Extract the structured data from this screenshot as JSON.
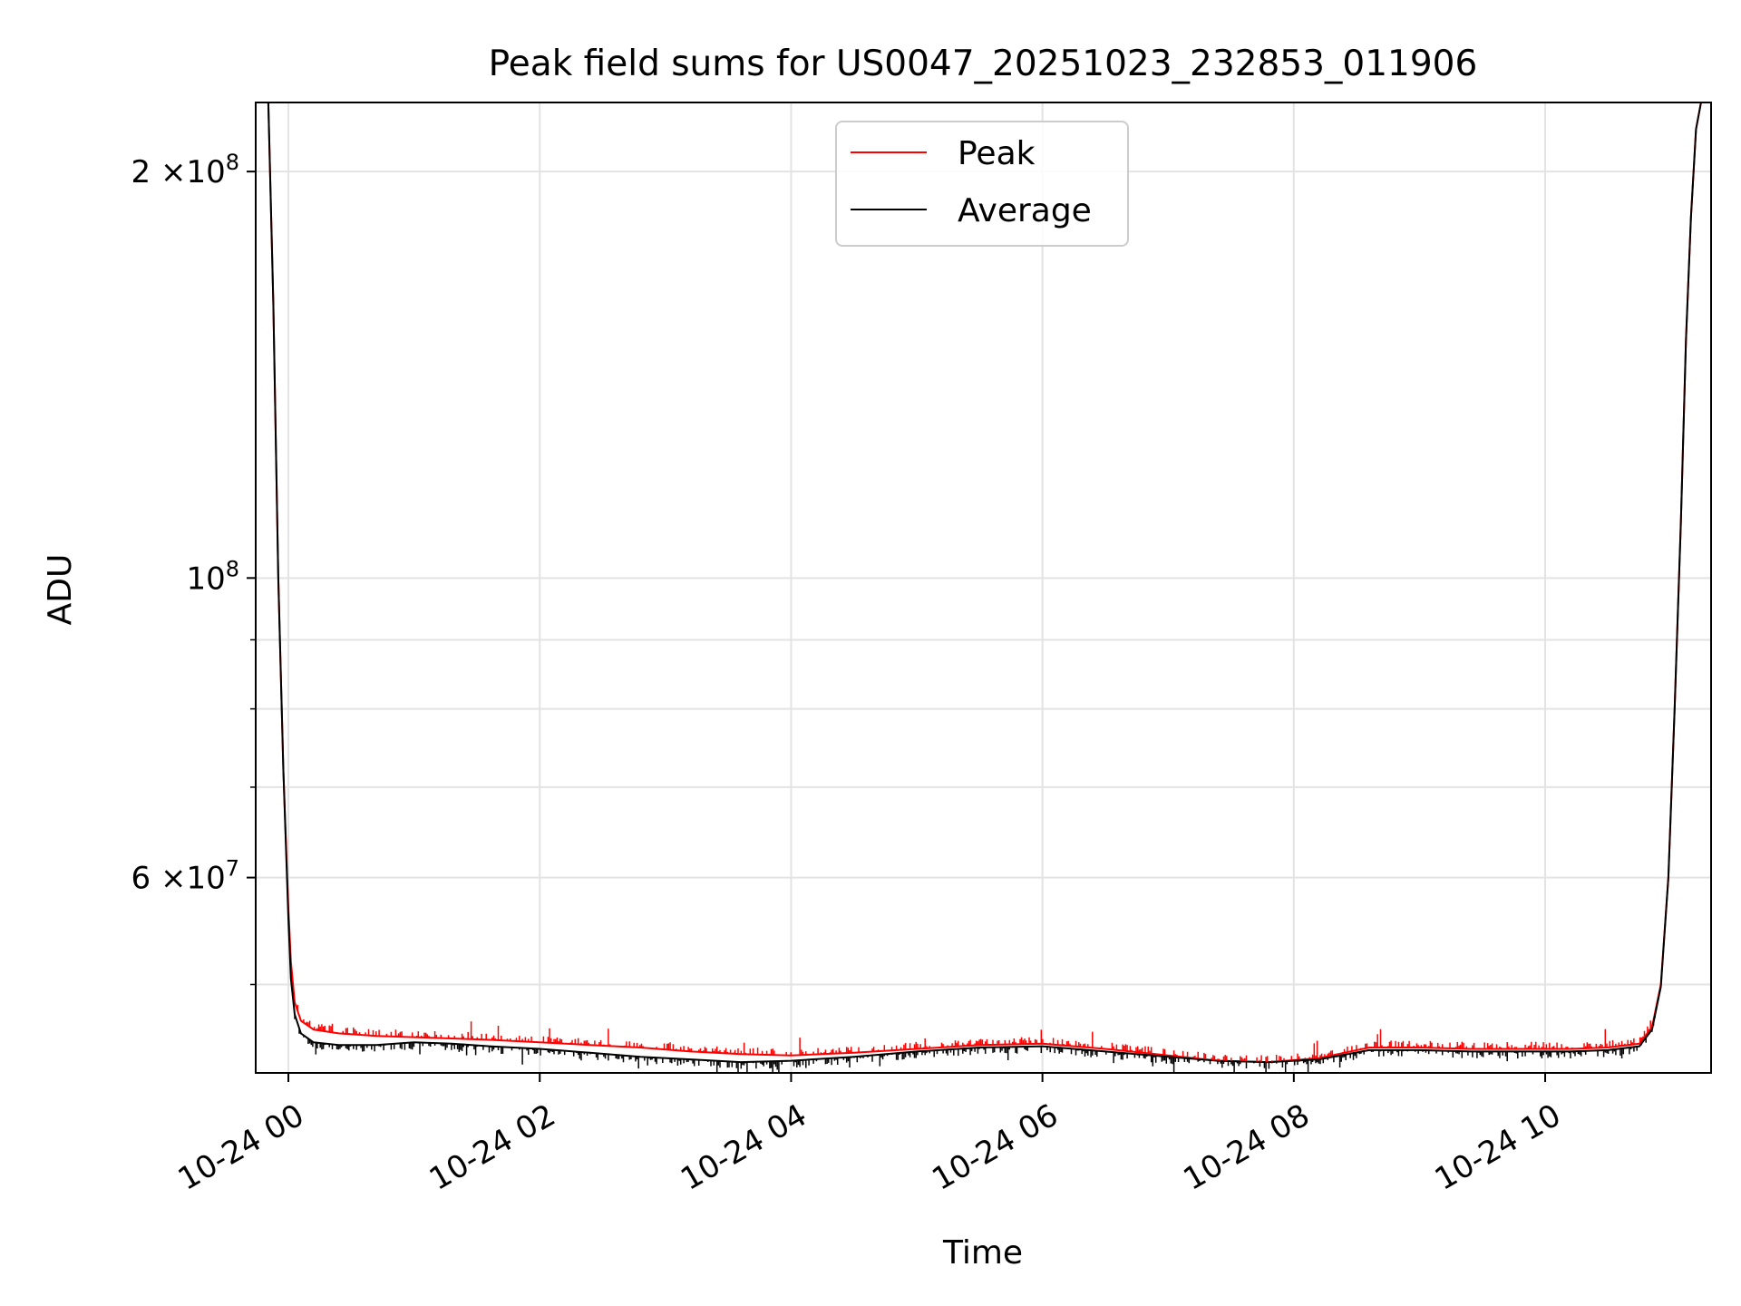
{
  "chart_data": {
    "type": "line",
    "title": "Peak field sums for US0047_20251023_232853_011906",
    "xlabel": "Time",
    "ylabel": "ADU",
    "yscale": "log",
    "xlim_hours": [
      -0.26,
      11.32
    ],
    "ylim": [
      43000000,
      225000000
    ],
    "grid": true,
    "legend_position": "upper-center",
    "x_ticks": [
      {
        "value": 0,
        "label": "10-24 00"
      },
      {
        "value": 2,
        "label": "10-24 02"
      },
      {
        "value": 4,
        "label": "10-24 04"
      },
      {
        "value": 6,
        "label": "10-24 06"
      },
      {
        "value": 8,
        "label": "10-24 08"
      },
      {
        "value": 10,
        "label": "10-24 10"
      }
    ],
    "y_major_ticks": [
      {
        "value": 200000000,
        "mantissa": "2",
        "times": "×10",
        "exp": "8"
      },
      {
        "value": 100000000,
        "mantissa": "",
        "times": "10",
        "exp": "8"
      },
      {
        "value": 60000000,
        "mantissa": "6",
        "times": "×10",
        "exp": "7"
      }
    ],
    "y_minor_ticks": [
      50000000,
      70000000,
      80000000,
      90000000
    ],
    "series": [
      {
        "name": "Peak",
        "color": "#ff0000",
        "x_hours": [
          -0.16,
          -0.12,
          -0.08,
          -0.04,
          0.0,
          0.02,
          0.05,
          0.1,
          0.2,
          0.4,
          0.7,
          1.0,
          1.3,
          1.6,
          2.0,
          2.4,
          2.8,
          3.2,
          3.6,
          4.0,
          4.5,
          5.0,
          5.5,
          6.0,
          6.5,
          7.0,
          7.4,
          7.8,
          8.2,
          8.6,
          9.0,
          9.4,
          9.8,
          10.2,
          10.5,
          10.75,
          10.85,
          10.92,
          10.98,
          11.03,
          11.08,
          11.12,
          11.16,
          11.2,
          11.24
        ],
        "values": [
          225000000,
          160000000,
          100000000,
          72000000,
          57000000,
          52000000,
          48500000,
          47000000,
          46300000,
          46000000,
          45800000,
          45700000,
          45600000,
          45500000,
          45300000,
          45100000,
          44900000,
          44600000,
          44400000,
          44300000,
          44500000,
          44800000,
          45100000,
          45200000,
          44800000,
          44300000,
          43900000,
          43800000,
          44100000,
          44900000,
          44900000,
          44800000,
          44800000,
          44800000,
          44900000,
          45200000,
          46500000,
          50000000,
          60000000,
          80000000,
          110000000,
          150000000,
          185000000,
          215000000,
          225000000
        ]
      },
      {
        "name": "Average",
        "color": "#000000",
        "x_hours": [
          -0.16,
          -0.12,
          -0.08,
          -0.04,
          0.0,
          0.02,
          0.05,
          0.1,
          0.2,
          0.4,
          0.7,
          1.0,
          1.3,
          1.6,
          2.0,
          2.4,
          2.8,
          3.2,
          3.6,
          4.0,
          4.5,
          5.0,
          5.5,
          6.0,
          6.5,
          7.0,
          7.4,
          7.8,
          8.2,
          8.6,
          9.0,
          9.4,
          9.8,
          10.2,
          10.5,
          10.75,
          10.85,
          10.92,
          10.98,
          11.03,
          11.08,
          11.12,
          11.16,
          11.2,
          11.24
        ],
        "values": [
          225000000,
          160000000,
          100000000,
          72000000,
          56000000,
          50500000,
          47500000,
          46000000,
          45300000,
          45100000,
          45100000,
          45300000,
          45200000,
          45000000,
          44800000,
          44500000,
          44200000,
          44000000,
          43800000,
          43900000,
          44200000,
          44600000,
          44900000,
          45000000,
          44600000,
          44200000,
          43900000,
          43800000,
          44000000,
          44700000,
          44700000,
          44600000,
          44600000,
          44600000,
          44700000,
          45000000,
          46300000,
          49800000,
          60000000,
          80000000,
          110000000,
          150000000,
          185000000,
          215000000,
          225000000
        ]
      }
    ]
  }
}
